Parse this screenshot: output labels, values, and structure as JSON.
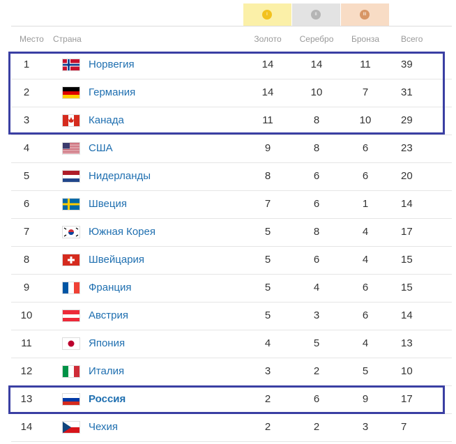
{
  "header": {
    "medals": [
      "I",
      "II",
      "III"
    ],
    "columns": [
      "Место",
      "Страна",
      "Золото",
      "Серебро",
      "Бронза",
      "Всего"
    ]
  },
  "table": {
    "rows": [
      [
        1,
        "Норвегия",
        14,
        14,
        11,
        39
      ],
      [
        2,
        "Германия",
        14,
        10,
        7,
        31
      ],
      [
        3,
        "Канада",
        11,
        8,
        10,
        29
      ],
      [
        4,
        "США",
        9,
        8,
        6,
        23
      ],
      [
        5,
        "Нидерланды",
        8,
        6,
        6,
        20
      ],
      [
        6,
        "Швеция",
        7,
        6,
        1,
        14
      ],
      [
        7,
        "Южная Корея",
        5,
        8,
        4,
        17
      ],
      [
        8,
        "Швейцария",
        5,
        6,
        4,
        15
      ],
      [
        9,
        "Франция",
        5,
        4,
        6,
        15
      ],
      [
        10,
        "Австрия",
        5,
        3,
        6,
        14
      ],
      [
        11,
        "Япония",
        4,
        5,
        4,
        13
      ],
      [
        12,
        "Италия",
        3,
        2,
        5,
        10
      ],
      [
        13,
        "Россия",
        2,
        6,
        9,
        17
      ],
      [
        14,
        "Чехия",
        2,
        2,
        3,
        7
      ]
    ]
  }
}
